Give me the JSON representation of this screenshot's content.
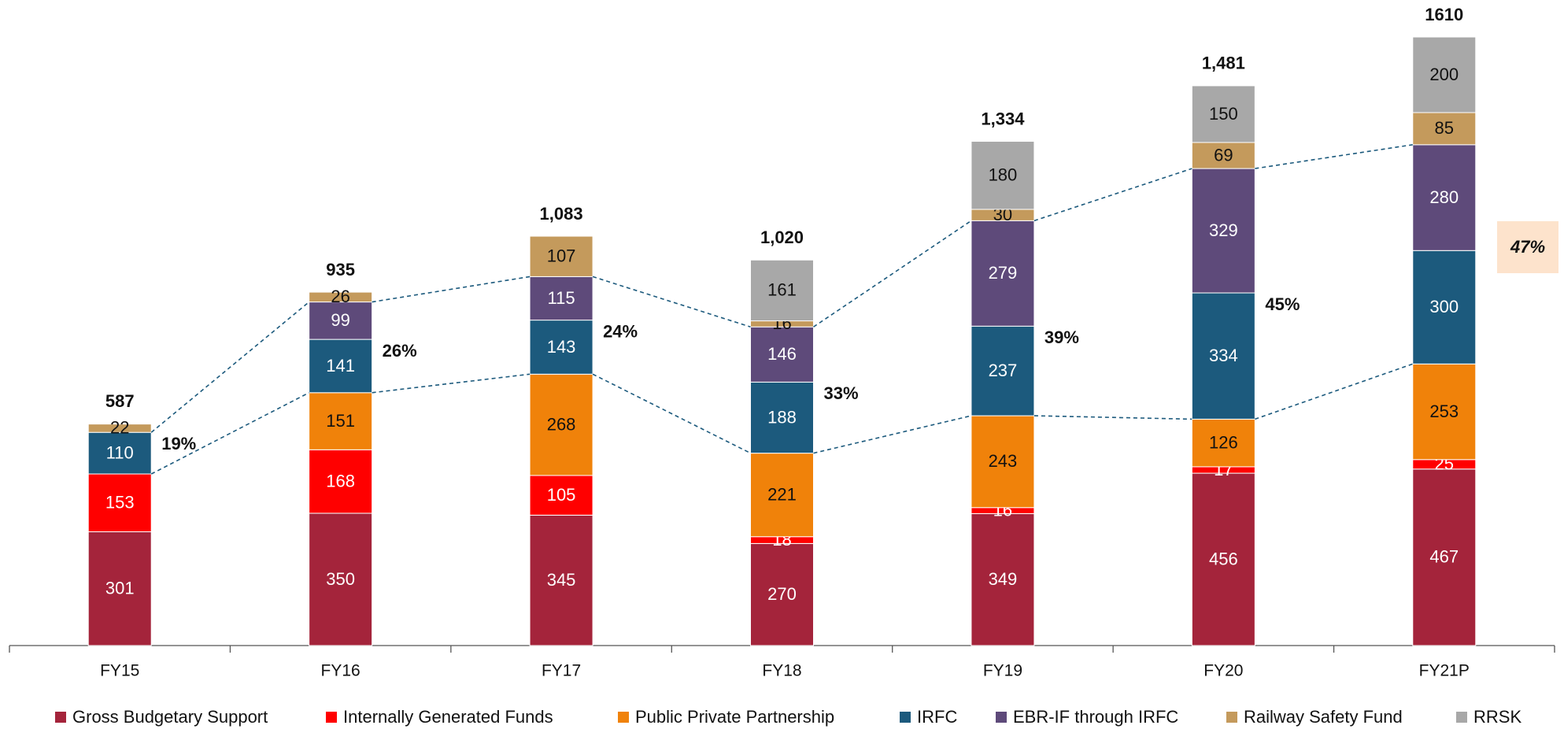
{
  "chart_data": {
    "type": "stacked_bar",
    "categories": [
      "FY15",
      "FY16",
      "FY17",
      "FY18",
      "FY19",
      "FY20",
      "FY21P"
    ],
    "series": [
      {
        "name": "Gross Budgetary Support",
        "color": "#a4243b",
        "values": [
          301,
          350,
          345,
          270,
          349,
          456,
          467
        ]
      },
      {
        "name": "Internally Generated Funds",
        "color": "#ff0000",
        "values": [
          153,
          168,
          105,
          18,
          16,
          17,
          25
        ]
      },
      {
        "name": "Public Private Partnership",
        "color": "#f0820a",
        "values": [
          null,
          151,
          268,
          221,
          243,
          126,
          253
        ]
      },
      {
        "name": "IRFC",
        "color": "#1c5a7d",
        "values": [
          110,
          141,
          143,
          188,
          237,
          334,
          300
        ]
      },
      {
        "name": "EBR-IF through IRFC",
        "color": "#5e4a7a",
        "values": [
          null,
          99,
          115,
          146,
          279,
          329,
          280
        ]
      },
      {
        "name": "Railway Safety Fund",
        "color": "#c49a5c",
        "values": [
          22,
          26,
          107,
          16,
          30,
          69,
          85
        ]
      },
      {
        "name": "RRSK",
        "color": "#a8a8a8",
        "values": [
          null,
          null,
          null,
          161,
          180,
          150,
          200
        ]
      }
    ],
    "totals": [
      587,
      935,
      1083,
      1020,
      1334,
      1481,
      1610
    ],
    "total_labels": [
      "587",
      "935",
      "1,083",
      "1,020",
      "1,334",
      "1,481",
      "1610"
    ],
    "shares": [
      19,
      26,
      24,
      33,
      39,
      45,
      47
    ],
    "share_labels": [
      "19%",
      "26%",
      "24%",
      "33%",
      "39%",
      "45%",
      "47%"
    ],
    "legend": "bottom"
  }
}
